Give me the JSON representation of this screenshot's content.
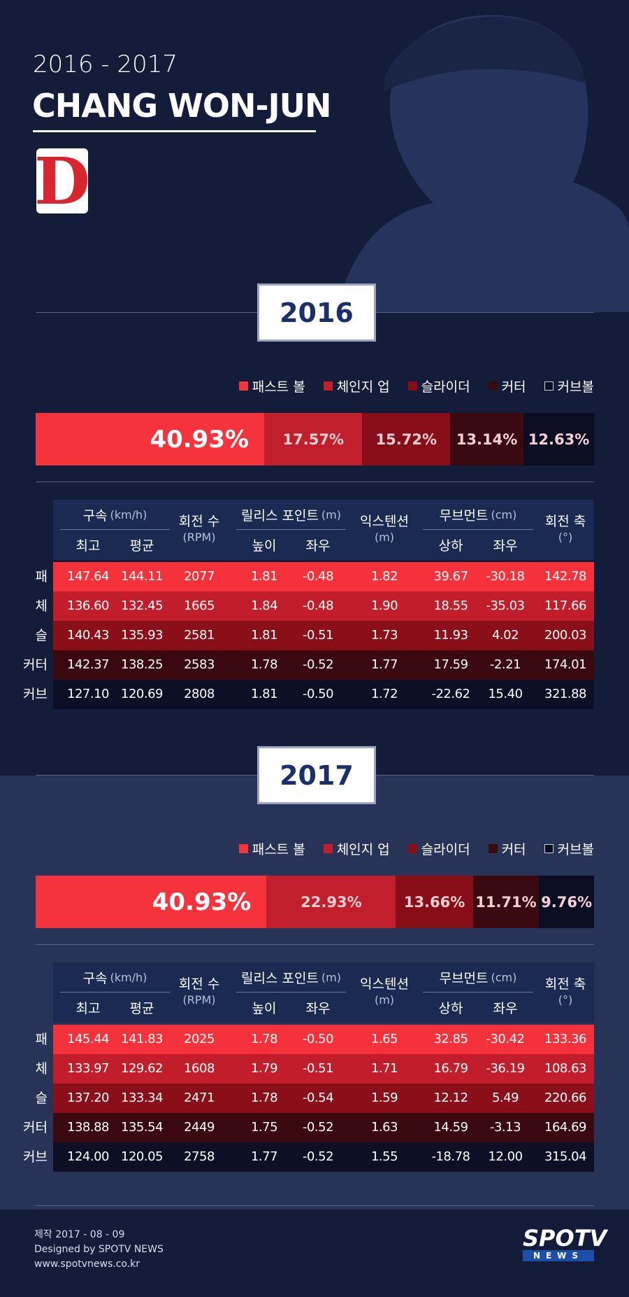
{
  "header": {
    "years": "2016 - 2017",
    "name": "CHANG WON-JUN",
    "logo": "D"
  },
  "sections": [
    {
      "year": "2016",
      "pitches": [
        {
          "name": "패스트 볼",
          "color": "#f5333d",
          "value": 40.93,
          "label": "40.93%"
        },
        {
          "name": "체인지 업",
          "color": "#c01f2b",
          "value": 17.57,
          "label": "17.57%"
        },
        {
          "name": "슬라이더",
          "color": "#870e18",
          "value": 15.72,
          "label": "15.72%"
        },
        {
          "name": "커터",
          "color": "#3a0a10",
          "value": 13.14,
          "label": "13.14%"
        },
        {
          "name": "커브볼",
          "color": "#0b0d22",
          "value": 12.63,
          "label": "12.63%"
        }
      ],
      "table": {
        "groups": [
          {
            "title": "구속",
            "unit": "(km/h)",
            "subs": [
              "최고",
              "평균"
            ]
          },
          {
            "title": "회전 수",
            "unit": "(RPM)"
          },
          {
            "title": "릴리스 포인트",
            "unit": "(m)",
            "subs": [
              "높이",
              "좌우"
            ]
          },
          {
            "title": "익스텐션",
            "unit": "(m)"
          },
          {
            "title": "무브먼트",
            "unit": "(cm)",
            "subs": [
              "상하",
              "좌우"
            ]
          },
          {
            "title": "회전 축",
            "unit": "(°)"
          }
        ],
        "rows": [
          {
            "label": "패",
            "cells": [
              "147.64",
              "144.11",
              "2077",
              "1.81",
              "-0.48",
              "1.82",
              "39.67",
              "-30.18",
              "142.78"
            ]
          },
          {
            "label": "체",
            "cells": [
              "136.60",
              "132.45",
              "1665",
              "1.84",
              "-0.48",
              "1.90",
              "18.55",
              "-35.03",
              "117.66"
            ]
          },
          {
            "label": "슬",
            "cells": [
              "140.43",
              "135.93",
              "2581",
              "1.81",
              "-0.51",
              "1.73",
              "11.93",
              "4.02",
              "200.03"
            ]
          },
          {
            "label": "커터",
            "cells": [
              "142.37",
              "138.25",
              "2583",
              "1.78",
              "-0.52",
              "1.77",
              "17.59",
              "-2.21",
              "174.01"
            ]
          },
          {
            "label": "커브",
            "cells": [
              "127.10",
              "120.69",
              "2808",
              "1.81",
              "-0.50",
              "1.72",
              "-22.62",
              "15.40",
              "321.88"
            ]
          }
        ]
      }
    },
    {
      "year": "2017",
      "pitches": [
        {
          "name": "패스트 볼",
          "color": "#f5333d",
          "value": 40.93,
          "label": "40.93%"
        },
        {
          "name": "체인지 업",
          "color": "#c01f2b",
          "value": 22.93,
          "label": "22.93%"
        },
        {
          "name": "슬라이더",
          "color": "#870e18",
          "value": 13.66,
          "label": "13.66%"
        },
        {
          "name": "커터",
          "color": "#3a0a10",
          "value": 11.71,
          "label": "11.71%"
        },
        {
          "name": "커브볼",
          "color": "#0b0d22",
          "value": 9.76,
          "label": "9.76%"
        }
      ],
      "table": {
        "groups": [
          {
            "title": "구속",
            "unit": "(km/h)",
            "subs": [
              "최고",
              "평균"
            ]
          },
          {
            "title": "회전 수",
            "unit": "(RPM)"
          },
          {
            "title": "릴리스 포인트",
            "unit": "(m)",
            "subs": [
              "높이",
              "좌우"
            ]
          },
          {
            "title": "익스텐션",
            "unit": "(m)"
          },
          {
            "title": "무브먼트",
            "unit": "(cm)",
            "subs": [
              "상하",
              "좌우"
            ]
          },
          {
            "title": "회전 축",
            "unit": "(°)"
          }
        ],
        "rows": [
          {
            "label": "패",
            "cells": [
              "145.44",
              "141.83",
              "2025",
              "1.78",
              "-0.50",
              "1.65",
              "32.85",
              "-30.42",
              "133.36"
            ]
          },
          {
            "label": "체",
            "cells": [
              "133.97",
              "129.62",
              "1608",
              "1.79",
              "-0.51",
              "1.71",
              "16.79",
              "-36.19",
              "108.63"
            ]
          },
          {
            "label": "슬",
            "cells": [
              "137.20",
              "133.34",
              "2471",
              "1.78",
              "-0.54",
              "1.59",
              "12.12",
              "5.49",
              "220.66"
            ]
          },
          {
            "label": "커터",
            "cells": [
              "138.88",
              "135.54",
              "2449",
              "1.75",
              "-0.52",
              "1.63",
              "14.59",
              "-3.13",
              "164.69"
            ]
          },
          {
            "label": "커브",
            "cells": [
              "124.00",
              "120.05",
              "2758",
              "1.77",
              "-0.52",
              "1.55",
              "-18.78",
              "12.00",
              "315.04"
            ]
          }
        ]
      }
    }
  ],
  "footer": {
    "date": "제작 2017 - 08 - 09",
    "credit": "Designed by SPOTV NEWS",
    "url": "www.spotvnews.co.kr",
    "logo": "SPOTV",
    "logo_sub": "NEWS"
  }
}
